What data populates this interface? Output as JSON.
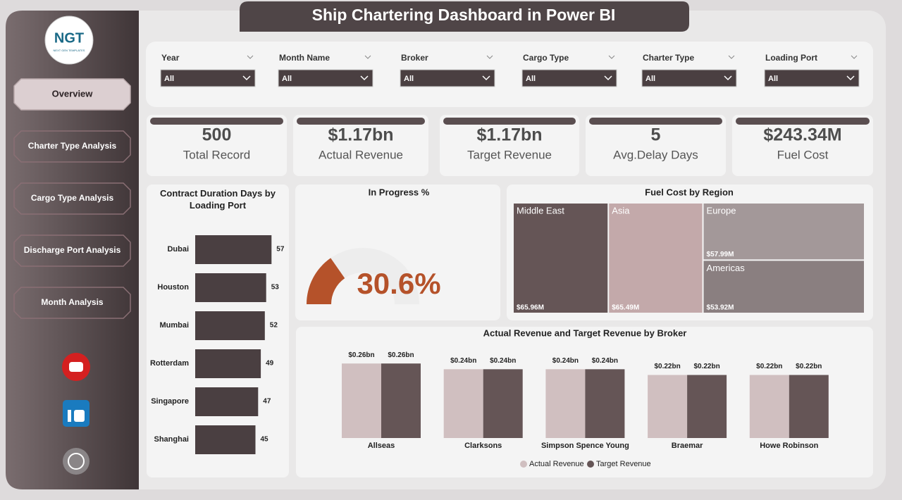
{
  "title": "Ship Chartering Dashboard in Power BI",
  "logo": {
    "text": "NGT",
    "tagline": "NEXT GEN TEMPLATES"
  },
  "nav": [
    "Overview",
    "Charter Type Analysis",
    "Cargo Type Analysis",
    "Discharge Port Analysis",
    "Month Analysis"
  ],
  "filters": [
    {
      "label": "Year",
      "value": "All"
    },
    {
      "label": "Month Name",
      "value": "All"
    },
    {
      "label": "Broker",
      "value": "All"
    },
    {
      "label": "Cargo Type",
      "value": "All"
    },
    {
      "label": "Charter Type",
      "value": "All"
    },
    {
      "label": "Loading Port",
      "value": "All"
    }
  ],
  "kpis": [
    {
      "value": "500",
      "label": "Total Record"
    },
    {
      "value": "$1.17bn",
      "label": "Actual Revenue"
    },
    {
      "value": "$1.17bn",
      "label": "Target Revenue"
    },
    {
      "value": "5",
      "label": "Avg.Delay Days"
    },
    {
      "value": "$243.34M",
      "label": "Fuel Cost"
    }
  ],
  "chart_data": [
    {
      "type": "hbar",
      "title": "Contract Duration Days by Loading Port",
      "categories": [
        "Dubai",
        "Houston",
        "Mumbai",
        "Rotterdam",
        "Singapore",
        "Shanghai"
      ],
      "values": [
        57,
        53,
        52,
        49,
        47,
        45
      ],
      "color": "#4a3f41"
    },
    {
      "type": "gauge",
      "title": "In Progress %",
      "value": 30.6,
      "value_label": "30.6%",
      "ylim": [
        0,
        100
      ],
      "color": "#b5522a"
    },
    {
      "type": "treemap",
      "title": "Fuel Cost by Region",
      "categories": [
        "Middle East",
        "Asia",
        "Europe",
        "Americas"
      ],
      "values": [
        65.96,
        65.49,
        57.99,
        53.92
      ],
      "value_labels": [
        "$65.96M",
        "$65.49M",
        "$57.99M",
        "$53.92M"
      ],
      "colors": [
        "#655556",
        "#c3a9aa",
        "#a39899",
        "#8a7f80"
      ]
    },
    {
      "type": "grouped",
      "title": "Actual Revenue and Target Revenue by Broker",
      "categories": [
        "Allseas",
        "Clarksons",
        "Simpson Spence Young",
        "Braemar",
        "Howe Robinson"
      ],
      "series": [
        {
          "name": "Actual Revenue",
          "color": "#d0bfc0",
          "values": [
            0.26,
            0.24,
            0.24,
            0.22,
            0.22
          ],
          "value_labels": [
            "$0.26bn",
            "$0.24bn",
            "$0.24bn",
            "$0.22bn",
            "$0.22bn"
          ]
        },
        {
          "name": "Target Revenue",
          "color": "#655556",
          "values": [
            0.26,
            0.24,
            0.24,
            0.22,
            0.22
          ],
          "value_labels": [
            "$0.26bn",
            "$0.24bn",
            "$0.24bn",
            "$0.22bn",
            "$0.22bn"
          ]
        }
      ]
    }
  ]
}
